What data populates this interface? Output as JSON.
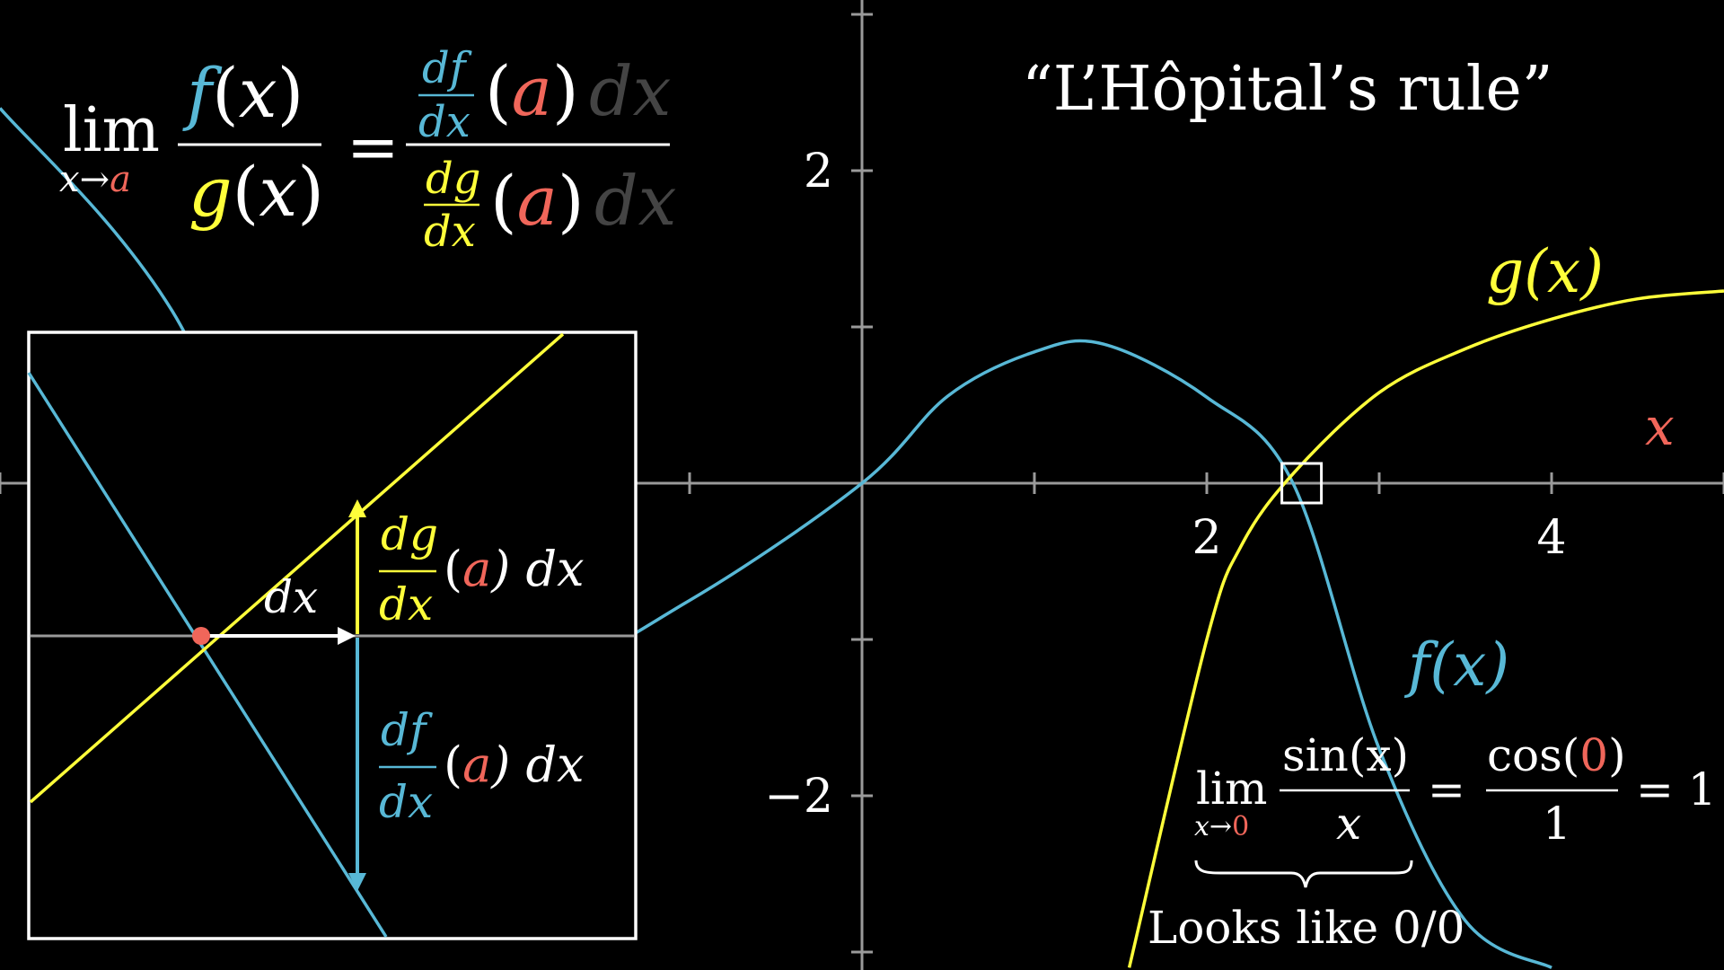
{
  "title": "“L’Hôpital’s rule”",
  "colors": {
    "background": "#000000",
    "f_curve": "#58b8d6",
    "g_curve": "#ffff3a",
    "a_accent": "#f0665a",
    "axes": "#9a9a9a",
    "text": "#ffffff",
    "dim_text": "#444444"
  },
  "main_formula": {
    "lim": "lim",
    "sub_var": "x",
    "sub_arrow": "→",
    "sub_a": "a",
    "num": "f",
    "den": "g",
    "x": "x",
    "lparen": "(",
    "rparen": ")",
    "equals": "=",
    "df_d": "d",
    "df_f": "f",
    "dx_d": "d",
    "dx_x": "x",
    "dg_d": "d",
    "dg_g": "g",
    "a": "a",
    "dx_trail": "dx"
  },
  "axis_labels": {
    "x_label": "x",
    "x_ticks": [
      "2",
      "4"
    ],
    "y_ticks": [
      "2",
      "−2"
    ]
  },
  "curve_labels": {
    "g_label": "g(x)",
    "f_label": "f(x)"
  },
  "inset": {
    "dx_label": "dx",
    "dg_num": "dg",
    "dg_den": "dx",
    "df_num": "df",
    "df_den": "dx",
    "lparen": "(",
    "a": "a",
    "rparen_dx": ") dx"
  },
  "example": {
    "lim": "lim",
    "sub_x": "x",
    "sub_arrow": "→",
    "sub_zero": "0",
    "num": "sin(x)",
    "den": "x",
    "eq1": "=",
    "cos_open": "cos(",
    "cos_zero": "0",
    "cos_close": ")",
    "cos_den": "1",
    "eq2": "= 1",
    "brace_note": "Looks like 0/0"
  },
  "chart_data": {
    "type": "line",
    "title": "",
    "xlabel": "x",
    "ylabel": "",
    "xlim": [
      -5,
      5
    ],
    "ylim": [
      -3,
      3
    ],
    "x_ticks": [
      -5,
      -4,
      -3,
      -2,
      -1,
      1,
      2,
      3,
      4,
      5
    ],
    "x_tick_labels": {
      "2": "2",
      "4": "4"
    },
    "y_ticks": [
      -3,
      -2,
      -1,
      1,
      2,
      3
    ],
    "y_tick_labels": {
      "2": "2",
      "-2": "−2"
    },
    "grid": false,
    "series": [
      {
        "name": "f(x)",
        "x": [
          -5,
          -4,
          -3,
          -2,
          -1,
          0,
          0.5,
          1,
          1.4,
          2,
          2.5,
          3,
          3.5,
          4
        ],
        "y": [
          2.4,
          1.1,
          -1.2,
          -1.3,
          -0.75,
          0,
          0.56,
          0.84,
          0.89,
          0.55,
          0,
          -1.7,
          -2.8,
          -3.1
        ]
      },
      {
        "name": "g(x)",
        "x": [
          1.55,
          2.0,
          2.2,
          2.5,
          3.0,
          3.5,
          4.0,
          4.5,
          5.0
        ],
        "y": [
          -3.1,
          -1.0,
          -0.4,
          0.06,
          0.58,
          0.86,
          1.05,
          1.18,
          1.23
        ]
      }
    ],
    "highlight_x": 2.55
  }
}
